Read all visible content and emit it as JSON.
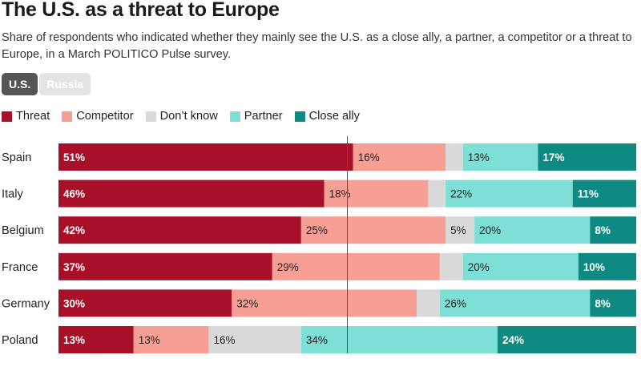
{
  "header": {
    "title": "The U.S. as a threat to Europe",
    "subtitle": "Share of respondents who indicated whether they mainly see the U.S. as a close ally, a partner, a competitor or a threat to Europe, in a March POLITICO Pulse survey."
  },
  "toggle": {
    "options": [
      {
        "label": "U.S.",
        "active": true
      },
      {
        "label": "Russia",
        "active": false
      }
    ]
  },
  "legend": [
    {
      "label": "Threat",
      "color": "#a8102a"
    },
    {
      "label": "Competitor",
      "color": "#f79f95"
    },
    {
      "label": "Don’t know",
      "color": "#d9d9d9"
    },
    {
      "label": "Partner",
      "color": "#7ddfd5"
    },
    {
      "label": "Close ally",
      "color": "#0f8a82"
    }
  ],
  "chart_data": {
    "type": "bar",
    "stacked": true,
    "orientation": "horizontal",
    "grid": false,
    "legend_position": "top-left",
    "xlim": [
      0,
      100
    ],
    "reference_line": 50,
    "categories": [
      "Spain",
      "Italy",
      "Belgium",
      "France",
      "Germany",
      "Poland"
    ],
    "series": [
      {
        "name": "Threat",
        "color": "#a8102a",
        "label_color": "#ffffff",
        "values": [
          51,
          46,
          42,
          37,
          30,
          13
        ],
        "labels": [
          "51%",
          "46%",
          "42%",
          "37%",
          "30%",
          "13%"
        ]
      },
      {
        "name": "Competitor",
        "color": "#f79f95",
        "label_color": "#222222",
        "values": [
          16,
          18,
          25,
          29,
          32,
          13
        ],
        "labels": [
          "16%",
          "18%",
          "25%",
          "29%",
          "32%",
          "13%"
        ]
      },
      {
        "name": "Don’t know",
        "color": "#d9d9d9",
        "label_color": "#222222",
        "values": [
          3,
          3,
          5,
          4,
          4,
          16
        ],
        "labels": [
          "",
          "",
          "5%",
          "",
          "",
          "16%"
        ]
      },
      {
        "name": "Partner",
        "color": "#7ddfd5",
        "label_color": "#222222",
        "values": [
          13,
          22,
          20,
          20,
          26,
          34
        ],
        "labels": [
          "13%",
          "22%",
          "20%",
          "20%",
          "26%",
          "34%"
        ]
      },
      {
        "name": "Close ally",
        "color": "#0f8a82",
        "label_color": "#ffffff",
        "values": [
          17,
          11,
          8,
          10,
          8,
          24
        ],
        "labels": [
          "17%",
          "11%",
          "8%",
          "10%",
          "8%",
          "24%"
        ]
      }
    ]
  }
}
